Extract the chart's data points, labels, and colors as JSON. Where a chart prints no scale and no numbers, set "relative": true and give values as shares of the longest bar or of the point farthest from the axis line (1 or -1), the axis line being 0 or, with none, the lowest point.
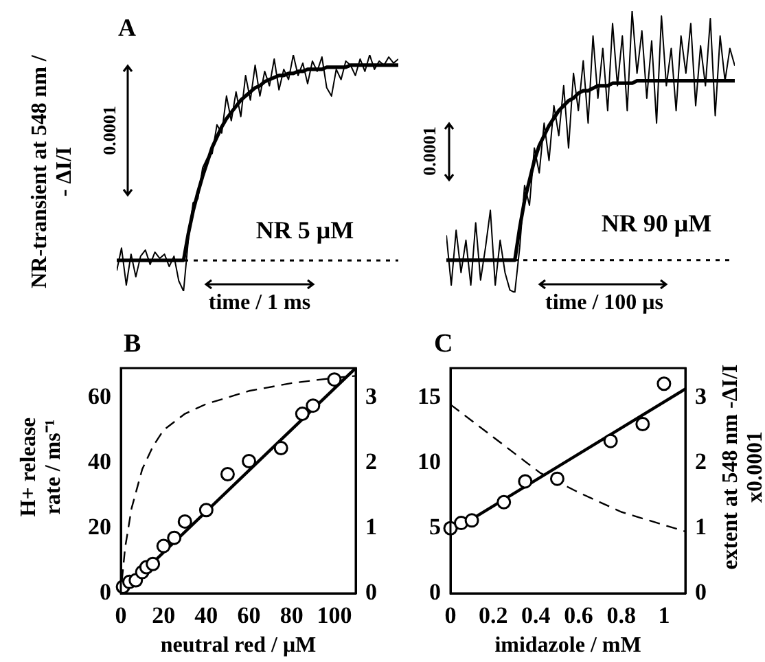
{
  "chart_data": [
    {
      "type": "line",
      "title": "A",
      "ylabel": "NR-transient at 548 nm / - ΔI/I",
      "relative": true,
      "grid": false,
      "categories": [
        null,
        null,
        null,
        null,
        null,
        null,
        null,
        null,
        null,
        null,
        null,
        null,
        null,
        null,
        null,
        null,
        null,
        null,
        null,
        null,
        null,
        null,
        null,
        null,
        null,
        null,
        null,
        null,
        null,
        null,
        null,
        null,
        null,
        null,
        null,
        null,
        null,
        null,
        null,
        null,
        null,
        null,
        null,
        null,
        null,
        null,
        null,
        null,
        null,
        null,
        null,
        null,
        null,
        null,
        null,
        null,
        null,
        null,
        null,
        null
      ],
      "series": [
        {
          "color": "#000000",
          "values": [
            -0.05,
            0.06,
            -0.12,
            0.03,
            -0.08,
            0.02,
            0.05,
            -0.02,
            0.04,
            0.01,
            0.03,
            -0.03,
            0.02,
            -0.1,
            -0.15,
            0.1,
            0.28,
            0.3,
            0.45,
            0.5,
            0.52,
            0.66,
            0.62,
            0.8,
            0.68,
            0.82,
            0.7,
            0.9,
            0.78,
            0.95,
            0.8,
            0.92,
            0.85,
            0.98,
            0.83,
            0.93,
            0.88,
            1.0,
            0.9,
            0.96,
            0.86,
            0.97,
            0.92,
            0.99,
            0.84,
            0.8,
            0.93,
            0.88,
            0.97,
            0.95,
            0.9,
            0.98,
            0.92,
            1.0,
            0.93,
            0.97,
            0.95,
            0.99,
            0.96,
            0.98
          ]
        },
        {
          "color": "#000000",
          "values": [
            0,
            0,
            0,
            0,
            0,
            0,
            0,
            0,
            0,
            0,
            0,
            0,
            0,
            0,
            0,
            0.13,
            0.24,
            0.33,
            0.41,
            0.48,
            0.55,
            0.6,
            0.65,
            0.69,
            0.72,
            0.75,
            0.78,
            0.8,
            0.82,
            0.84,
            0.85,
            0.87,
            0.88,
            0.89,
            0.9,
            0.9,
            0.91,
            0.91,
            0.92,
            0.92,
            0.93,
            0.93,
            0.93,
            0.93,
            0.94,
            0.94,
            0.94,
            0.94,
            0.94,
            0.95,
            0.95,
            0.95,
            0.95,
            0.95,
            0.95,
            0.95,
            0.95,
            0.95,
            0.95,
            0.95
          ]
        }
      ],
      "ref_lines": [
        {
          "axis": "y",
          "value": 0,
          "line_style": "dotted"
        }
      ],
      "annotations": [
        "NR 5 μM",
        "0.0001",
        "time / 1 ms"
      ]
    },
    {
      "type": "line",
      "relative": true,
      "grid": false,
      "categories": [
        null,
        null,
        null,
        null,
        null,
        null,
        null,
        null,
        null,
        null,
        null,
        null,
        null,
        null,
        null,
        null,
        null,
        null,
        null,
        null,
        null,
        null,
        null,
        null,
        null,
        null,
        null,
        null,
        null,
        null,
        null,
        null,
        null,
        null,
        null,
        null,
        null,
        null,
        null,
        null,
        null,
        null,
        null,
        null,
        null,
        null,
        null,
        null,
        null,
        null,
        null,
        null,
        null,
        null,
        null,
        null,
        null,
        null,
        null,
        null
      ],
      "series": [
        {
          "color": "#000000",
          "values": [
            0.1,
            -0.1,
            0.12,
            -0.05,
            0.08,
            -0.1,
            0.15,
            -0.08,
            0.05,
            0.2,
            -0.1,
            0.08,
            -0.05,
            -0.12,
            -0.13,
            0.05,
            0.3,
            0.22,
            0.45,
            0.35,
            0.55,
            0.4,
            0.62,
            0.5,
            0.7,
            0.45,
            0.75,
            0.6,
            0.8,
            0.55,
            0.9,
            0.65,
            0.85,
            0.6,
            0.95,
            0.7,
            0.9,
            0.6,
            1.0,
            0.75,
            0.92,
            0.65,
            0.88,
            0.55,
            0.98,
            0.7,
            0.85,
            0.6,
            0.9,
            0.75,
            0.95,
            0.62,
            0.86,
            0.7,
            0.97,
            0.58,
            0.9,
            0.72,
            0.85,
            0.78
          ]
        },
        {
          "color": "#000000",
          "values": [
            0,
            0,
            0,
            0,
            0,
            0,
            0,
            0,
            0,
            0,
            0,
            0,
            0,
            0,
            0,
            0.13,
            0.24,
            0.32,
            0.4,
            0.46,
            0.5,
            0.54,
            0.57,
            0.6,
            0.62,
            0.64,
            0.65,
            0.67,
            0.68,
            0.68,
            0.69,
            0.7,
            0.7,
            0.7,
            0.71,
            0.71,
            0.71,
            0.71,
            0.71,
            0.72,
            0.72,
            0.72,
            0.72,
            0.72,
            0.72,
            0.72,
            0.72,
            0.72,
            0.72,
            0.72,
            0.72,
            0.72,
            0.72,
            0.72,
            0.72,
            0.72,
            0.72,
            0.72,
            0.72,
            0.72
          ]
        }
      ],
      "ref_lines": [
        {
          "axis": "y",
          "value": 0,
          "line_style": "dotted"
        }
      ],
      "annotations": [
        "NR 90 μM",
        "0.0001",
        "time / 100 μs"
      ]
    },
    {
      "type": "scatter",
      "title": "B",
      "xlabel": "neutral red / μM",
      "ylabel": "H+ release rate / ms⁻¹",
      "grid": false,
      "xlim": [
        0,
        110
      ],
      "xticks": [
        0,
        20,
        40,
        60,
        80,
        100
      ],
      "ylim": [
        0,
        69
      ],
      "yticks": [
        0,
        20,
        40,
        60
      ],
      "y2lim": [
        0,
        3.45
      ],
      "y2ticks": [
        0,
        1,
        2,
        3
      ],
      "series": [
        {
          "type": "scatter",
          "marker": "circle",
          "color": "#000000",
          "x": [
            1,
            4,
            7,
            10,
            12,
            15,
            20,
            25,
            30,
            40,
            50,
            60,
            75,
            85,
            90,
            100
          ],
          "values": [
            2,
            3.5,
            4,
            6.5,
            8,
            9,
            14.5,
            17,
            22,
            25.5,
            36.5,
            40.5,
            44.5,
            55,
            57.5,
            65.5
          ]
        },
        {
          "type": "line",
          "color": "#000000",
          "x": [
            0,
            110
          ],
          "values": [
            0,
            69
          ]
        },
        {
          "type": "line",
          "axis": "y2",
          "line_style": "dashed",
          "color": "#000000",
          "x": [
            0.5,
            2,
            5,
            10,
            15,
            20,
            30,
            40,
            60,
            80,
            100,
            110
          ],
          "values": [
            0.2,
            0.7,
            1.3,
            1.9,
            2.25,
            2.5,
            2.75,
            2.9,
            3.1,
            3.22,
            3.3,
            3.33
          ]
        }
      ]
    },
    {
      "type": "scatter",
      "title": "C",
      "xlabel": "imidazole / mM",
      "y2label": "extent at 548 nm -ΔI/I x0.0001",
      "grid": false,
      "xlim": [
        0,
        1.1
      ],
      "xticks": [
        0,
        0.2,
        0.4,
        0.6,
        0.8,
        1
      ],
      "ylim": [
        0,
        17.3
      ],
      "yticks": [
        0,
        5,
        10,
        15
      ],
      "y2lim": [
        0,
        3.46
      ],
      "y2ticks": [
        0,
        1,
        2,
        3
      ],
      "series": [
        {
          "type": "scatter",
          "marker": "circle",
          "color": "#000000",
          "x": [
            0,
            0.05,
            0.1,
            0.25,
            0.35,
            0.5,
            0.75,
            0.9,
            1
          ],
          "values": [
            5,
            5.4,
            5.6,
            7,
            8.6,
            8.8,
            11.7,
            13,
            16.1
          ]
        },
        {
          "type": "line",
          "color": "#000000",
          "x": [
            0,
            1.1
          ],
          "values": [
            4.7,
            15.7
          ]
        },
        {
          "type": "line",
          "axis": "y2",
          "line_style": "dashed",
          "color": "#000000",
          "x": [
            0,
            0.2,
            0.42,
            0.6,
            0.8,
            1,
            1.1
          ],
          "values": [
            2.9,
            2.4,
            1.85,
            1.55,
            1.25,
            1.05,
            0.95
          ]
        }
      ]
    }
  ]
}
